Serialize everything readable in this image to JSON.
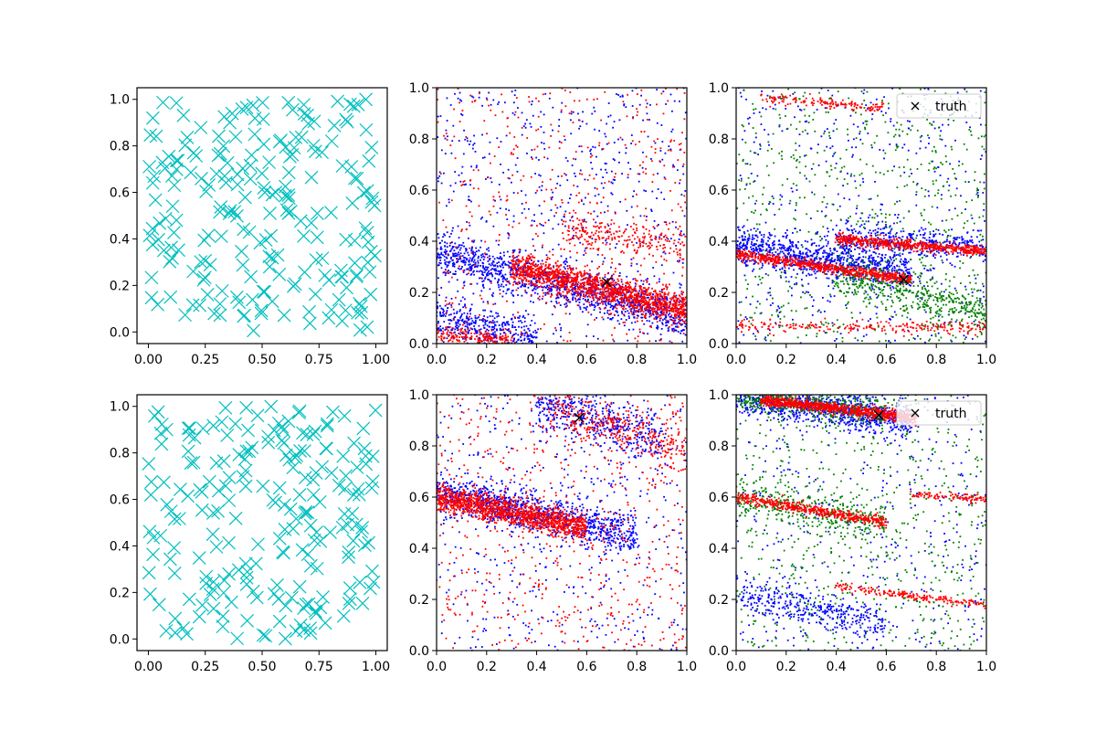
{
  "chart_data": [
    {
      "type": "scatter",
      "panel": "top-left",
      "marker": "x",
      "color": "#00bfbf",
      "xlim": [
        -0.05,
        1.05
      ],
      "ylim": [
        -0.05,
        1.05
      ],
      "xticks": [
        "0.00",
        "0.25",
        "0.50",
        "0.75",
        "1.00"
      ],
      "yticks": [
        "0.0",
        "0.2",
        "0.4",
        "0.6",
        "0.8",
        "1.0"
      ],
      "distribution": "uniform random points",
      "n_points": 220
    },
    {
      "type": "scatter",
      "panel": "top-middle",
      "xlim": [
        0,
        1
      ],
      "ylim": [
        0,
        1
      ],
      "xticks": [
        "0.0",
        "0.2",
        "0.4",
        "0.6",
        "0.8",
        "1.0"
      ],
      "yticks": [
        "0.0",
        "0.2",
        "0.4",
        "0.6",
        "0.8",
        "1.0"
      ],
      "series": [
        {
          "name": "blue",
          "color": "#0000ff"
        },
        {
          "name": "red",
          "color": "#ff0000"
        }
      ],
      "bands": [
        {
          "x": [
            0.0,
            1.0
          ],
          "y": [
            0.35,
            0.1
          ],
          "width": 0.04,
          "color": "#0000ff",
          "n": 1200
        },
        {
          "x": [
            0.3,
            1.0
          ],
          "y": [
            0.3,
            0.13
          ],
          "width": 0.03,
          "color": "#ff0000",
          "n": 1500
        },
        {
          "x": [
            0.0,
            0.4
          ],
          "y": [
            0.1,
            0.02
          ],
          "width": 0.04,
          "color": "#0000ff",
          "n": 400
        },
        {
          "x": [
            0.0,
            0.3
          ],
          "y": [
            0.04,
            0.0
          ],
          "width": 0.02,
          "color": "#ff0000",
          "n": 200
        },
        {
          "x": [
            0.5,
            1.0
          ],
          "y": [
            0.45,
            0.38
          ],
          "width": 0.04,
          "color": "#ff0000",
          "n": 250
        }
      ],
      "noise": [
        {
          "color": "#0000ff",
          "n": 650,
          "ymin": 0.0,
          "ymax": 1.0
        },
        {
          "color": "#ff0000",
          "n": 450,
          "ymin": 0.0,
          "ymax": 1.0
        }
      ],
      "truth": {
        "x": 0.68,
        "y": 0.24
      },
      "truth_color": "#000000"
    },
    {
      "type": "scatter",
      "panel": "top-right",
      "xlim": [
        0,
        1
      ],
      "ylim": [
        0,
        1
      ],
      "xticks": [
        "0.0",
        "0.2",
        "0.4",
        "0.6",
        "0.8",
        "1.0"
      ],
      "yticks": [
        "0.0",
        "0.2",
        "0.4",
        "0.6",
        "0.8",
        "1.0"
      ],
      "series": [
        {
          "name": "blue",
          "color": "#0000ff"
        },
        {
          "name": "green",
          "color": "#008000"
        },
        {
          "name": "red",
          "color": "#ff0000"
        }
      ],
      "bands": [
        {
          "x": [
            0.0,
            0.7
          ],
          "y": [
            0.38,
            0.28
          ],
          "width": 0.04,
          "color": "#0000ff",
          "n": 900
        },
        {
          "x": [
            0.4,
            1.0
          ],
          "y": [
            0.42,
            0.37
          ],
          "width": 0.03,
          "color": "#0000ff",
          "n": 350
        },
        {
          "x": [
            0.4,
            1.0
          ],
          "y": [
            0.27,
            0.12
          ],
          "width": 0.04,
          "color": "#008000",
          "n": 450
        },
        {
          "x": [
            0.0,
            0.7
          ],
          "y": [
            0.35,
            0.25
          ],
          "width": 0.01,
          "color": "#ff0000",
          "n": 700
        },
        {
          "x": [
            0.4,
            1.0
          ],
          "y": [
            0.41,
            0.36
          ],
          "width": 0.01,
          "color": "#ff0000",
          "n": 600
        },
        {
          "x": [
            0.0,
            1.0
          ],
          "y": [
            0.07,
            0.06
          ],
          "width": 0.012,
          "color": "#ff0000",
          "n": 220
        },
        {
          "x": [
            0.1,
            0.6
          ],
          "y": [
            0.96,
            0.92
          ],
          "width": 0.01,
          "color": "#ff0000",
          "n": 150
        }
      ],
      "noise": [
        {
          "color": "#0000ff",
          "n": 500,
          "ymin": 0.0,
          "ymax": 1.0
        },
        {
          "color": "#008000",
          "n": 700,
          "ymin": 0.0,
          "ymax": 1.0
        }
      ],
      "truth": {
        "x": 0.67,
        "y": 0.25
      },
      "truth_color": "#000000",
      "legend": {
        "label": "truth",
        "position": "top-right"
      }
    },
    {
      "type": "scatter",
      "panel": "bottom-left",
      "marker": "x",
      "color": "#00bfbf",
      "xlim": [
        -0.05,
        1.05
      ],
      "ylim": [
        -0.05,
        1.05
      ],
      "xticks": [
        "0.00",
        "0.25",
        "0.50",
        "0.75",
        "1.00"
      ],
      "yticks": [
        "0.0",
        "0.2",
        "0.4",
        "0.6",
        "0.8",
        "1.0"
      ],
      "distribution": "uniform random points",
      "n_points": 220
    },
    {
      "type": "scatter",
      "panel": "bottom-middle",
      "xlim": [
        0,
        1
      ],
      "ylim": [
        0,
        1
      ],
      "xticks": [
        "0.0",
        "0.2",
        "0.4",
        "0.6",
        "0.8",
        "1.0"
      ],
      "yticks": [
        "0.0",
        "0.2",
        "0.4",
        "0.6",
        "0.8",
        "1.0"
      ],
      "series": [
        {
          "name": "blue",
          "color": "#0000ff"
        },
        {
          "name": "red",
          "color": "#ff0000"
        }
      ],
      "bands": [
        {
          "x": [
            0.0,
            0.8
          ],
          "y": [
            0.62,
            0.45
          ],
          "width": 0.04,
          "color": "#0000ff",
          "n": 1000
        },
        {
          "x": [
            0.0,
            0.6
          ],
          "y": [
            0.6,
            0.48
          ],
          "width": 0.025,
          "color": "#ff0000",
          "n": 1300
        },
        {
          "x": [
            0.4,
            0.9
          ],
          "y": [
            0.97,
            0.82
          ],
          "width": 0.05,
          "color": "#0000ff",
          "n": 450
        },
        {
          "x": [
            0.45,
            1.0
          ],
          "y": [
            0.95,
            0.8
          ],
          "width": 0.05,
          "color": "#ff0000",
          "n": 350
        }
      ],
      "noise": [
        {
          "color": "#0000ff",
          "n": 500,
          "ymin": 0.0,
          "ymax": 1.0
        },
        {
          "color": "#ff0000",
          "n": 600,
          "ymin": 0.0,
          "ymax": 1.0
        }
      ],
      "truth": {
        "x": 0.57,
        "y": 0.91
      },
      "truth_color": "#000000"
    },
    {
      "type": "scatter",
      "panel": "bottom-right",
      "xlim": [
        0,
        1
      ],
      "ylim": [
        0,
        1
      ],
      "xticks": [
        "0.0",
        "0.2",
        "0.4",
        "0.6",
        "0.8",
        "1.0"
      ],
      "yticks": [
        "0.0",
        "0.2",
        "0.4",
        "0.6",
        "0.8",
        "1.0"
      ],
      "series": [
        {
          "name": "blue",
          "color": "#0000ff"
        },
        {
          "name": "green",
          "color": "#008000"
        },
        {
          "name": "red",
          "color": "#ff0000"
        }
      ],
      "bands": [
        {
          "x": [
            0.0,
            0.7
          ],
          "y": [
            0.99,
            0.9
          ],
          "width": 0.035,
          "color": "#0000ff",
          "n": 900
        },
        {
          "x": [
            0.0,
            0.6
          ],
          "y": [
            0.99,
            0.93
          ],
          "width": 0.025,
          "color": "#008000",
          "n": 450
        },
        {
          "x": [
            0.0,
            0.6
          ],
          "y": [
            0.22,
            0.1
          ],
          "width": 0.035,
          "color": "#0000ff",
          "n": 350
        },
        {
          "x": [
            0.0,
            0.6
          ],
          "y": [
            0.6,
            0.5
          ],
          "width": 0.04,
          "color": "#008000",
          "n": 350
        },
        {
          "x": [
            0.1,
            0.72
          ],
          "y": [
            0.98,
            0.91
          ],
          "width": 0.01,
          "color": "#ff0000",
          "n": 900
        },
        {
          "x": [
            0.0,
            0.6
          ],
          "y": [
            0.6,
            0.5
          ],
          "width": 0.01,
          "color": "#ff0000",
          "n": 500
        },
        {
          "x": [
            0.7,
            1.0
          ],
          "y": [
            0.61,
            0.59
          ],
          "width": 0.008,
          "color": "#ff0000",
          "n": 100
        },
        {
          "x": [
            0.4,
            1.0
          ],
          "y": [
            0.25,
            0.18
          ],
          "width": 0.008,
          "color": "#ff0000",
          "n": 200
        }
      ],
      "noise": [
        {
          "color": "#0000ff",
          "n": 400,
          "ymin": 0.0,
          "ymax": 1.0
        },
        {
          "color": "#008000",
          "n": 650,
          "ymin": 0.0,
          "ymax": 1.0
        }
      ],
      "truth": {
        "x": 0.57,
        "y": 0.92
      },
      "truth_color": "#000000",
      "legend": {
        "label": "truth",
        "position": "top-right"
      }
    }
  ]
}
